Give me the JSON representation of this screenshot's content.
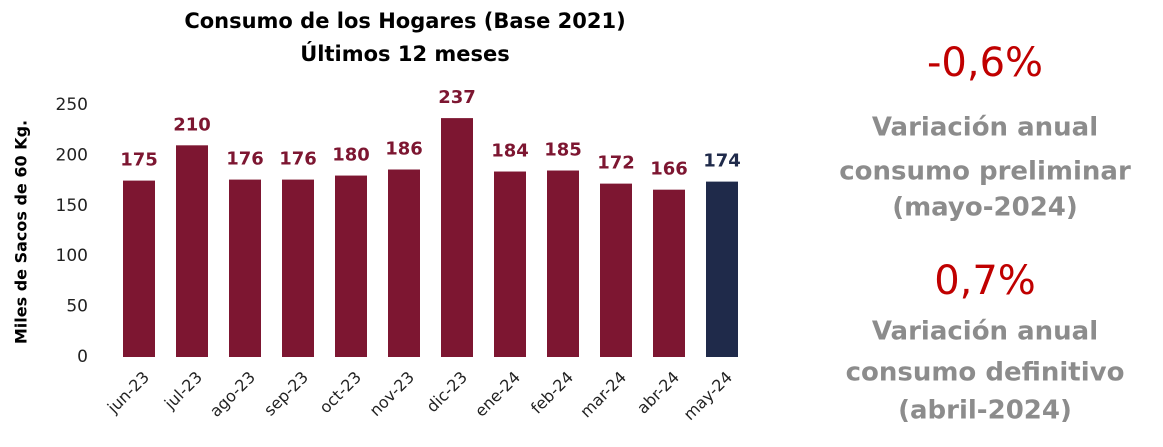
{
  "chart_data": {
    "type": "bar",
    "title": "Consumo de los Hogares (Base 2021)",
    "subtitle": "Últimos 12 meses",
    "ylabel": "Miles de Sacos de 60 Kg.",
    "categories": [
      "jun-23",
      "jul-23",
      "ago-23",
      "sep-23",
      "oct-23",
      "nov-23",
      "dic-23",
      "ene-24",
      "feb-24",
      "mar-24",
      "abr-24",
      "may-24"
    ],
    "values": [
      175,
      210,
      176,
      176,
      180,
      186,
      237,
      184,
      185,
      172,
      166,
      174
    ],
    "colors": [
      "#7d1631",
      "#7d1631",
      "#7d1631",
      "#7d1631",
      "#7d1631",
      "#7d1631",
      "#7d1631",
      "#7d1631",
      "#7d1631",
      "#7d1631",
      "#7d1631",
      "#1f2a4a"
    ],
    "ylim": [
      0,
      250
    ],
    "yticks": [
      0,
      50,
      100,
      150,
      200,
      250
    ],
    "grid": false
  },
  "stats": [
    {
      "value": "-0,6%",
      "label": [
        "Variación anual",
        "consumo preliminar",
        "(mayo-2024)"
      ]
    },
    {
      "value": "0,7%",
      "label": [
        "Variación anual",
        "consumo definitivo",
        "(abril-2024)"
      ]
    }
  ]
}
